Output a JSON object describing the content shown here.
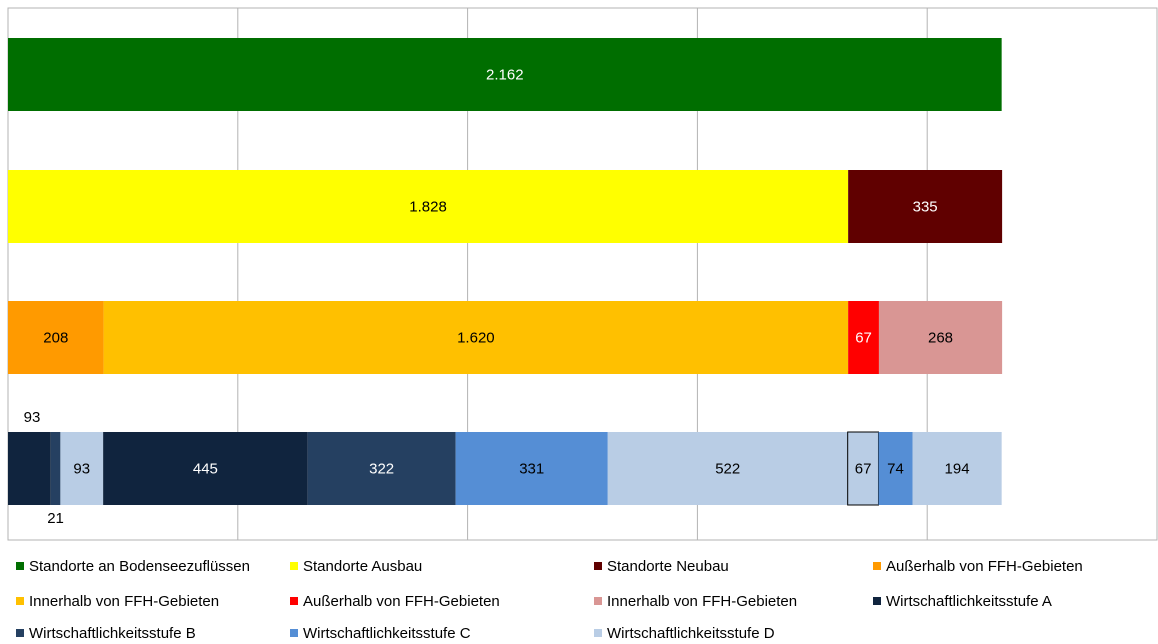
{
  "chart_data": {
    "type": "stacked-bar-horizontal",
    "xlim": [
      0,
      2500
    ],
    "xticks": [
      0,
      500,
      1000,
      1500,
      2000,
      2500
    ],
    "grid": true,
    "bars": [
      {
        "segments": [
          {
            "value": 2162,
            "label": "2.162",
            "color": "#006e00"
          }
        ]
      },
      {
        "segments": [
          {
            "value": 1828,
            "label": "1.828",
            "color": "#ffff00"
          },
          {
            "value": 335,
            "color": "#600000"
          }
        ]
      },
      {
        "segments": [
          {
            "value": 208,
            "color": "#ff9a00"
          },
          {
            "value": 1620,
            "label": "1.620",
            "color": "#ffc000"
          },
          {
            "value": 67,
            "color": "#ff0000"
          },
          {
            "value": 268,
            "color": "#d99694"
          }
        ]
      },
      {
        "segments": [
          {
            "value": 93,
            "color": "#10243e",
            "label_position": "above"
          },
          {
            "value": 21,
            "color": "#254061",
            "label_position": "below"
          },
          {
            "value": 93,
            "color": "#b9cde5"
          },
          {
            "value": 445,
            "color": "#10243e"
          },
          {
            "value": 322,
            "color": "#254061"
          },
          {
            "value": 331,
            "color": "#558ed5"
          },
          {
            "value": 522,
            "color": "#b9cde5"
          },
          {
            "value": 67,
            "color": "#b9cde5",
            "outline": true
          },
          {
            "value": 74,
            "color": "#558ed5"
          },
          {
            "value": 194,
            "color": "#b9cde5"
          }
        ]
      }
    ],
    "legend": [
      {
        "name": "Standorte an Bodenseezuflüssen",
        "color": "#006e00"
      },
      {
        "name": "Standorte Ausbau",
        "color": "#ffff00"
      },
      {
        "name": "Standorte Neubau",
        "color": "#600000"
      },
      {
        "name": "Außerhalb von FFH-Gebieten",
        "color": "#ff9a00"
      },
      {
        "name": "Innerhalb von FFH-Gebieten",
        "color": "#ffc000"
      },
      {
        "name": "Außerhalb von FFH-Gebieten",
        "color": "#ff0000"
      },
      {
        "name": "Innerhalb von FFH-Gebieten",
        "color": "#d99694"
      },
      {
        "name": "Wirtschaftlichkeitsstufe A",
        "color": "#10243e"
      },
      {
        "name": "Wirtschaftlichkeitsstufe B",
        "color": "#254061"
      },
      {
        "name": "Wirtschaftlichkeitsstufe C",
        "color": "#558ed5"
      },
      {
        "name": "Wirtschaftlichkeitsstufe D",
        "color": "#b9cde5"
      }
    ]
  }
}
